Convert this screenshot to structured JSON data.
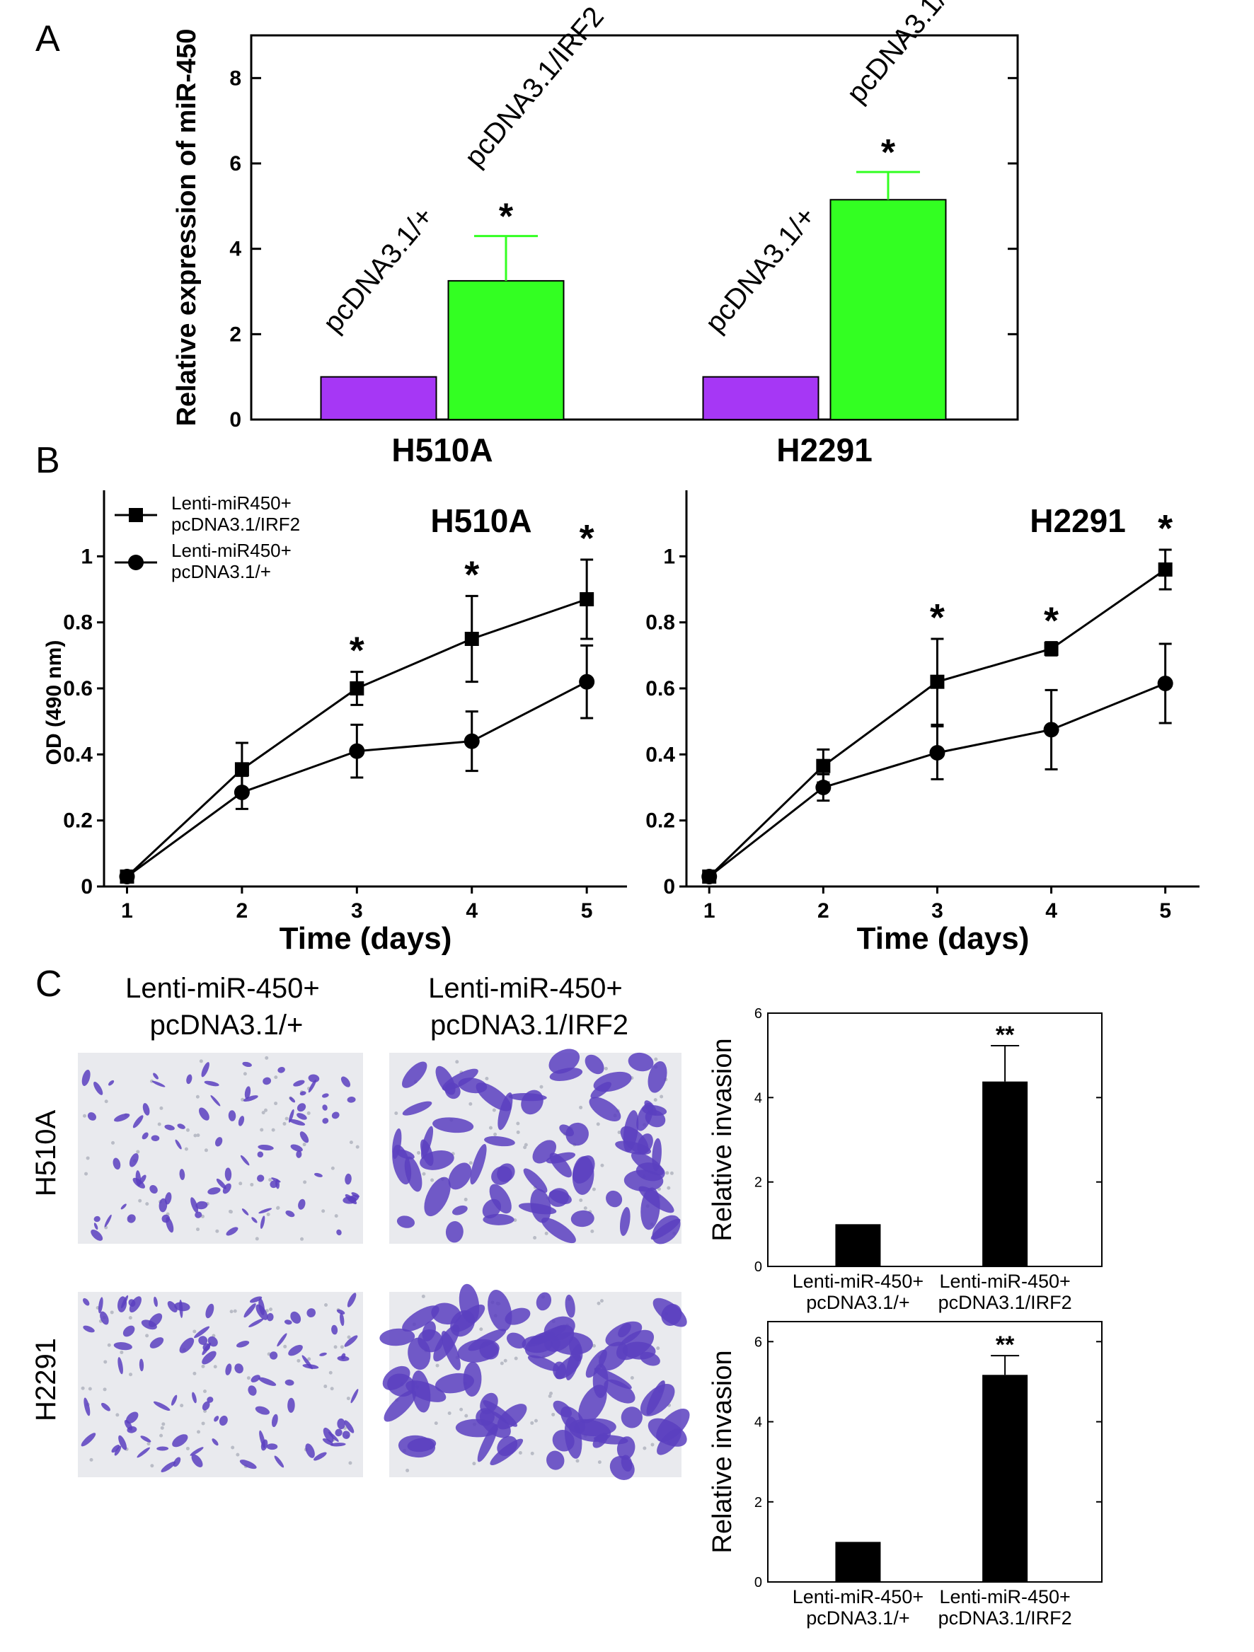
{
  "panel_labels": {
    "a": "A",
    "b": "B",
    "c": "C"
  },
  "photo_grid": {
    "column_headers": [
      [
        "Lenti-miR-450+",
        "pcDNA3.1/+"
      ],
      [
        "Lenti-miR-450+",
        "pcDNA3.1/IRF2"
      ]
    ],
    "row_labels": [
      "H510A",
      "H2291"
    ]
  },
  "colors": {
    "control_bar": "#a637f5",
    "irf2_bar": "#33ff22",
    "invasion_bar": "#000000",
    "cell_stain": "#5a3fbf",
    "membrane_background": "#e9eaee"
  },
  "chart_data": [
    {
      "id": "A",
      "type": "bar",
      "ylabel": "Relative expression of miR-450",
      "ylim": [
        0,
        9
      ],
      "yticks": [
        0,
        2,
        4,
        6,
        8
      ],
      "categories": [
        "H510A",
        "H2291"
      ],
      "series": [
        {
          "name": "pcDNA3.1/+",
          "values": [
            1.0,
            1.0
          ],
          "errors": [
            0,
            0
          ]
        },
        {
          "name": "pcDNA3.1/IRF2",
          "values": [
            3.25,
            5.15
          ],
          "errors": [
            1.05,
            0.65
          ]
        }
      ],
      "annotations": [
        {
          "category": "H510A",
          "series": "pcDNA3.1/IRF2",
          "text": "*"
        },
        {
          "category": "H2291",
          "series": "pcDNA3.1/IRF2",
          "text": "*"
        }
      ],
      "grid": false,
      "legend": "none"
    },
    {
      "id": "B-H510A",
      "type": "line",
      "title": "H510A",
      "xlabel": "Time (days)",
      "ylabel": "OD (490 nm)",
      "x": [
        1,
        2,
        3,
        4,
        5
      ],
      "xlim": [
        0.8,
        5.35
      ],
      "ylim": [
        0,
        1.2
      ],
      "yticks": [
        0,
        0.2,
        0.4,
        0.6,
        0.8,
        1
      ],
      "series": [
        {
          "name": "Lenti-miR450+ pcDNA3.1/IRF2",
          "legend_lines": [
            "Lenti-miR450+",
            "pcDNA3.1/IRF2"
          ],
          "marker": "square",
          "values": [
            0.03,
            0.355,
            0.6,
            0.75,
            0.87
          ],
          "errors": [
            0.01,
            0.08,
            0.05,
            0.13,
            0.12
          ]
        },
        {
          "name": "Lenti-miR450+ pcDNA3.1/+",
          "legend_lines": [
            "Lenti-miR450+",
            "pcDNA3.1/+"
          ],
          "marker": "circle",
          "values": [
            0.03,
            0.285,
            0.41,
            0.44,
            0.62
          ],
          "errors": [
            0.01,
            0.05,
            0.08,
            0.09,
            0.11
          ]
        }
      ],
      "annotations": [
        {
          "x": 3,
          "text": "*"
        },
        {
          "x": 4,
          "text": "*"
        },
        {
          "x": 5,
          "text": "*"
        }
      ],
      "grid": false,
      "legend": "top-left"
    },
    {
      "id": "B-H2291",
      "type": "line",
      "title": "H2291",
      "xlabel": "Time (days)",
      "ylabel": "",
      "x": [
        1,
        2,
        3,
        4,
        5
      ],
      "xlim": [
        0.8,
        5.3
      ],
      "ylim": [
        0,
        1.2
      ],
      "yticks": [
        0,
        0.2,
        0.4,
        0.6,
        0.8,
        1
      ],
      "series": [
        {
          "name": "Lenti-miR450+ pcDNA3.1/IRF2",
          "marker": "square",
          "values": [
            0.03,
            0.365,
            0.62,
            0.72,
            0.96
          ],
          "errors": [
            0.01,
            0.05,
            0.13,
            0.02,
            0.06
          ]
        },
        {
          "name": "Lenti-miR450+ pcDNA3.1/+",
          "marker": "circle",
          "values": [
            0.03,
            0.3,
            0.405,
            0.475,
            0.615
          ],
          "errors": [
            0.01,
            0.04,
            0.08,
            0.12,
            0.12
          ]
        }
      ],
      "annotations": [
        {
          "x": 3,
          "text": "*"
        },
        {
          "x": 4,
          "text": "*"
        },
        {
          "x": 5,
          "text": "*"
        }
      ],
      "grid": false,
      "legend": "none"
    },
    {
      "id": "C-H510A",
      "type": "bar",
      "ylabel": "Relative invasion",
      "ylim": [
        0,
        6
      ],
      "yticks": [
        0,
        2,
        4,
        6
      ],
      "categories": [
        [
          "Lenti-miR-450+",
          "pcDNA3.1/+"
        ],
        [
          "Lenti-miR-450+",
          "pcDNA3.1/IRF2"
        ]
      ],
      "values": [
        1.0,
        4.38
      ],
      "errors": [
        0,
        0.85
      ],
      "annotations": [
        {
          "index": 1,
          "text": "**"
        }
      ],
      "grid": false,
      "legend": "none"
    },
    {
      "id": "C-H2291",
      "type": "bar",
      "ylabel": "Relative invasion",
      "ylim": [
        0,
        6.5
      ],
      "yticks": [
        0,
        2,
        4,
        6
      ],
      "categories": [
        [
          "Lenti-miR-450+",
          "pcDNA3.1/+"
        ],
        [
          "Lenti-miR-450+",
          "pcDNA3.1/IRF2"
        ]
      ],
      "values": [
        1.0,
        5.17
      ],
      "errors": [
        0,
        0.48
      ],
      "annotations": [
        {
          "index": 1,
          "text": "**"
        }
      ],
      "grid": false,
      "legend": "none"
    }
  ]
}
